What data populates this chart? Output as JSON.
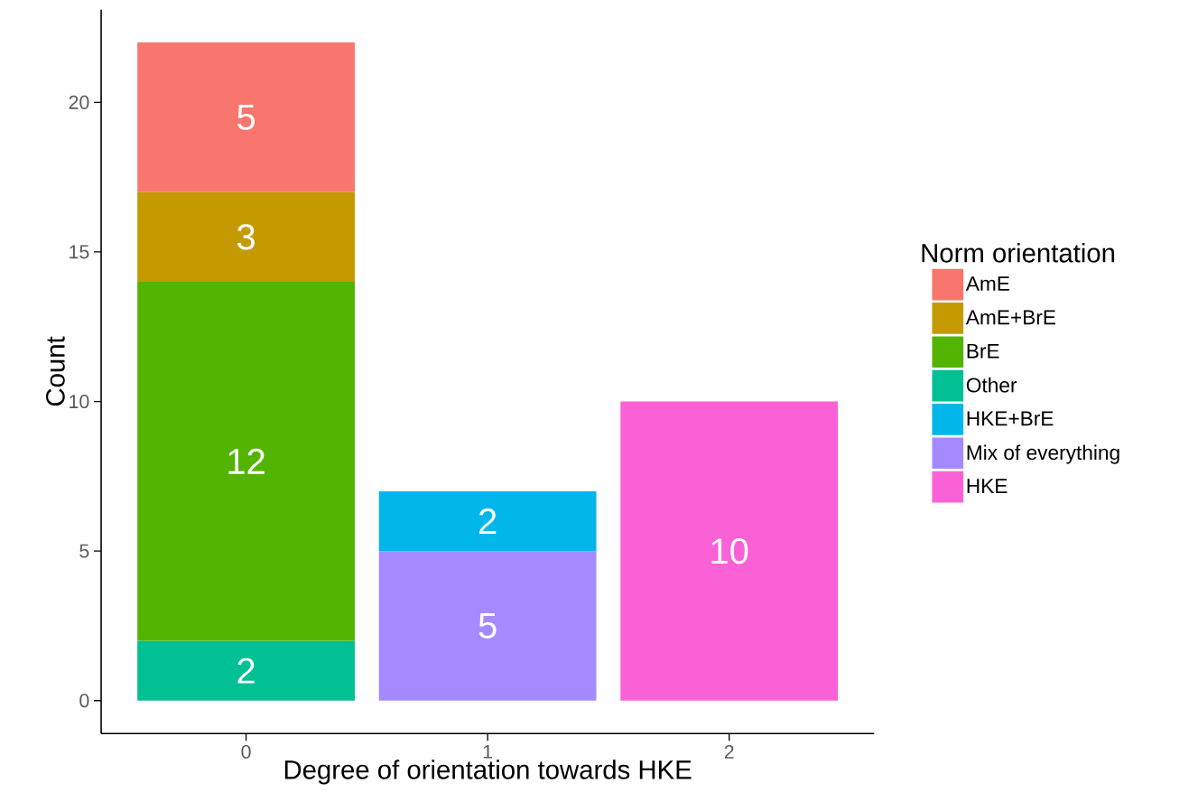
{
  "chart_data": {
    "type": "bar",
    "stacked": true,
    "xlabel": "Degree of orientation towards HKE",
    "ylabel": "Count",
    "legend_title": "Norm orientation",
    "categories": [
      "0",
      "1",
      "2"
    ],
    "series": [
      {
        "name": "HKE",
        "color": "#fb61d7",
        "values": [
          null,
          null,
          10
        ]
      },
      {
        "name": "Mix of everything",
        "color": "#a58aff",
        "values": [
          null,
          5,
          null
        ]
      },
      {
        "name": "HKE+BrE",
        "color": "#00b6eb",
        "values": [
          null,
          2,
          null
        ]
      },
      {
        "name": "Other",
        "color": "#00c094",
        "values": [
          2,
          null,
          null
        ]
      },
      {
        "name": "BrE",
        "color": "#53b400",
        "values": [
          12,
          null,
          null
        ]
      },
      {
        "name": "AmE+BrE",
        "color": "#c49a00",
        "values": [
          3,
          null,
          null
        ]
      },
      {
        "name": "AmE",
        "color": "#f8766d",
        "values": [
          5,
          null,
          null
        ]
      }
    ],
    "ylim": [
      -1.1,
      23.1
    ],
    "yticks": [
      0,
      5,
      10,
      15,
      20
    ],
    "data_labels": true,
    "legend": "right",
    "grid": false
  }
}
